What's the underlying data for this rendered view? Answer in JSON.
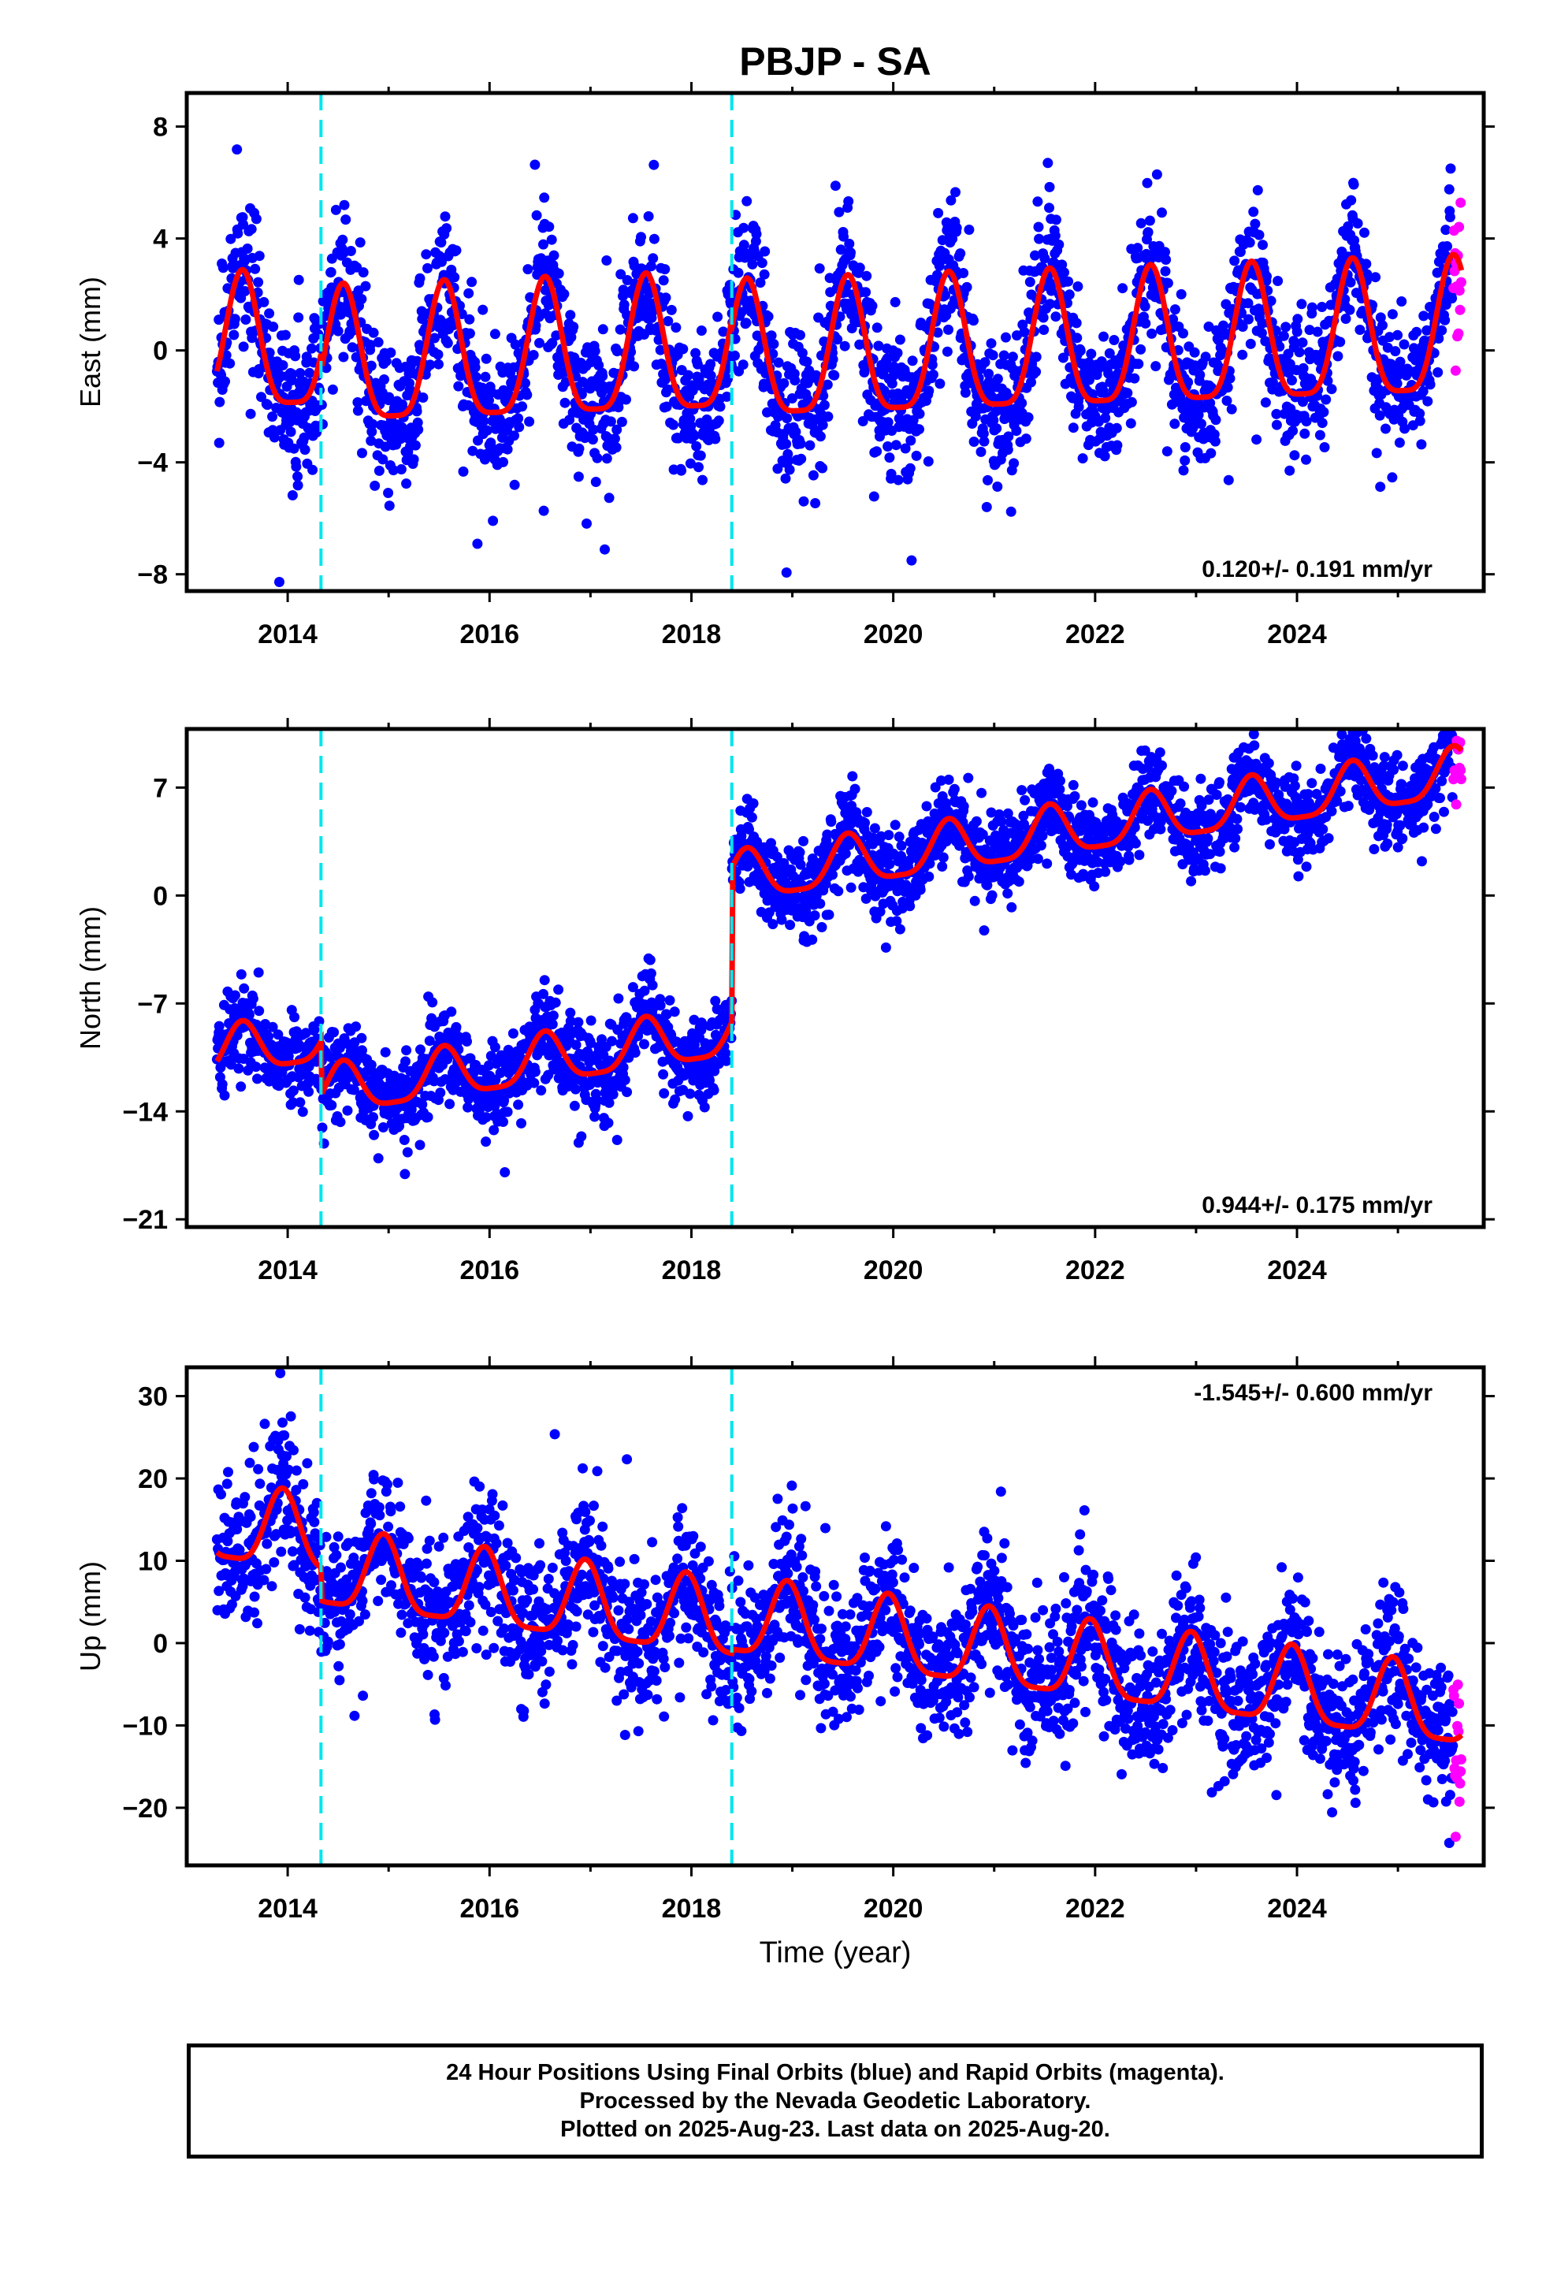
{
  "title": "PBJP - SA",
  "xlabel": "Time (year)",
  "colors": {
    "final": "#0000ff",
    "rapid": "#ff00ff",
    "model": "#ff0000",
    "offset": "#00e5ee"
  },
  "footer": {
    "line1": "24 Hour Positions Using Final Orbits (blue) and Rapid Orbits (magenta).",
    "line2": "Processed by the Nevada Geodetic Laboratory.",
    "line3": "Plotted on 2025-Aug-23. Last data on 2025-Aug-20."
  },
  "chart_data": [
    {
      "type": "scatter",
      "component": "East",
      "ylabel": "East (mm)",
      "rate_label": "0.120+/- 0.191 mm/yr",
      "xlim": [
        2013.0,
        2025.85
      ],
      "ylim": [
        -8.6,
        9.2
      ],
      "yticks": [
        8,
        4,
        0,
        -4,
        -8
      ],
      "xticks": [
        2014,
        2016,
        2018,
        2020,
        2022,
        2024
      ],
      "offsets": [
        2014.33,
        2018.4
      ],
      "data_start": 2013.3,
      "data_end": 2025.63,
      "rapid_start": 2025.55,
      "model": {
        "trend_mm_yr": 0.12,
        "annual_amp": 2.4,
        "phase_peak": 0.55,
        "noise_sd": 1.3,
        "segment_offsets": [
          0.6,
          0.0,
          -0.3
        ]
      }
    },
    {
      "type": "scatter",
      "component": "North",
      "ylabel": "North (mm)",
      "rate_label": "0.944+/- 0.175 mm/yr",
      "xlim": [
        2013.0,
        2025.85
      ],
      "ylim": [
        -21.5,
        10.8
      ],
      "yticks": [
        7,
        0,
        -7,
        -14,
        -21
      ],
      "xticks": [
        2014,
        2016,
        2018,
        2020,
        2022,
        2024
      ],
      "offsets": [
        2014.33,
        2018.4
      ],
      "data_start": 2013.3,
      "data_end": 2025.63,
      "rapid_start": 2025.55,
      "model": {
        "trend_mm_yr": 0.944,
        "annual_amp": 1.6,
        "phase_peak": 0.55,
        "noise_sd": 1.4,
        "segment_offsets": [
          -4.5,
          -8.0,
          2.0
        ]
      }
    },
    {
      "type": "scatter",
      "component": "Up",
      "ylabel": "Up (mm)",
      "rate_label": "-1.545+/- 0.600 mm/yr",
      "xlim": [
        2013.0,
        2025.85
      ],
      "ylim": [
        -27,
        33.5
      ],
      "yticks": [
        30,
        20,
        10,
        0,
        -10,
        -20
      ],
      "xticks": [
        2014,
        2016,
        2018,
        2020,
        2022,
        2024
      ],
      "offsets": [
        2014.33,
        2018.4
      ],
      "data_start": 2013.3,
      "data_end": 2025.63,
      "rapid_start": 2025.55,
      "model": {
        "trend_mm_yr": -1.545,
        "annual_amp": 4.6,
        "phase_peak": 0.95,
        "noise_sd": 4.2,
        "segment_offsets": [
          4.5,
          0.5,
          1.0
        ]
      }
    }
  ]
}
